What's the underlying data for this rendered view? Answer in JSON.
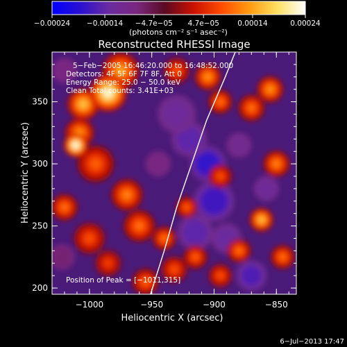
{
  "chart_data": {
    "type": "heatmap",
    "title": "Reconstructed RHESSI Image",
    "xlabel": "Heliocentric X (arcsec)",
    "ylabel": "Heliocentric Y (arcsec)",
    "xlim": [
      -1030,
      -834
    ],
    "ylim": [
      195,
      390
    ],
    "x_ticks": [
      -1000,
      -950,
      -900,
      -850
    ],
    "x_tick_labels": [
      "−1000",
      "−950",
      "−900",
      "−850"
    ],
    "y_ticks": [
      200,
      250,
      300,
      350
    ],
    "y_tick_labels": [
      "200",
      "250",
      "300",
      "350"
    ],
    "colorbar": {
      "range": [
        -0.00024,
        0.00024
      ],
      "ticks": [
        -0.00024,
        -0.00014,
        -4.7e-05,
        4.7e-05,
        0.00014,
        0.00024
      ],
      "tick_labels": [
        "−0.00024",
        "−0.00014",
        "−4.7e−05",
        "4.7e−05",
        "0.00014",
        "0.00024"
      ],
      "unit_label": "(photons cm⁻² s⁻¹ asec⁻²)",
      "colormap": [
        "#0000ff",
        "#2a10d0",
        "#6a2aa0",
        "#7a2880",
        "#5a0a22",
        "#c81000",
        "#ff4a00",
        "#ff9a10",
        "#ffe060",
        "#ffffff"
      ]
    },
    "info_lines": [
      "5−Feb−2005 16:46:20.000 to 16:48:52.000",
      "Detectors: 4F 5F 6F 7F 8F, Att 0",
      "Energy Range: 25.0 − 50.0 keV",
      "Clean    Total counts: 3.41E+03"
    ],
    "peak_label": "Position of Peak = [−1011,315]",
    "peak_position": [
      -1011,
      315
    ],
    "limb_curve": [
      [
        -951,
        195
      ],
      [
        -940,
        230
      ],
      [
        -930,
        265
      ],
      [
        -918,
        300
      ],
      [
        -906,
        335
      ],
      [
        -891,
        370
      ],
      [
        -883,
        390
      ]
    ],
    "sources": [
      {
        "x": -1011,
        "y": 315,
        "level": 1.0,
        "r": 9
      },
      {
        "x": -985,
        "y": 357,
        "level": 0.95,
        "r": 14
      },
      {
        "x": -1005,
        "y": 348,
        "level": 0.7,
        "r": 12
      },
      {
        "x": -975,
        "y": 375,
        "level": 0.6,
        "r": 14
      },
      {
        "x": -1008,
        "y": 325,
        "level": 0.55,
        "r": 11
      },
      {
        "x": -995,
        "y": 300,
        "level": 0.4,
        "r": 14
      },
      {
        "x": -970,
        "y": 275,
        "level": 0.5,
        "r": 12
      },
      {
        "x": -1020,
        "y": 265,
        "level": 0.45,
        "r": 10
      },
      {
        "x": -960,
        "y": 250,
        "level": 0.45,
        "r": 12
      },
      {
        "x": -1000,
        "y": 240,
        "level": 0.35,
        "r": 12
      },
      {
        "x": -940,
        "y": 240,
        "level": 0.45,
        "r": 9
      },
      {
        "x": -955,
        "y": 205,
        "level": 0.4,
        "r": 10
      },
      {
        "x": -985,
        "y": 220,
        "level": 0.3,
        "r": 10
      },
      {
        "x": -932,
        "y": 215,
        "level": 0.35,
        "r": 10
      },
      {
        "x": -915,
        "y": 225,
        "level": 0.4,
        "r": 9
      },
      {
        "x": -895,
        "y": 290,
        "level": 0.35,
        "r": 9
      },
      {
        "x": -905,
        "y": 370,
        "level": 0.55,
        "r": 10
      },
      {
        "x": -895,
        "y": 350,
        "level": 0.45,
        "r": 9
      },
      {
        "x": -870,
        "y": 345,
        "level": 0.45,
        "r": 10
      },
      {
        "x": -855,
        "y": 360,
        "level": 0.55,
        "r": 10
      },
      {
        "x": -850,
        "y": 300,
        "level": 0.5,
        "r": 10
      },
      {
        "x": -862,
        "y": 255,
        "level": 0.7,
        "r": 9
      },
      {
        "x": -880,
        "y": 230,
        "level": 0.45,
        "r": 9
      },
      {
        "x": -845,
        "y": 225,
        "level": 0.45,
        "r": 9
      },
      {
        "x": -895,
        "y": 210,
        "level": 0.35,
        "r": 9
      },
      {
        "x": -930,
        "y": 375,
        "level": 0.35,
        "r": 10
      },
      {
        "x": -922,
        "y": 265,
        "level": 0.4,
        "r": 8
      },
      {
        "x": -930,
        "y": 340,
        "level": -0.5,
        "r": 15
      },
      {
        "x": -920,
        "y": 320,
        "level": -0.6,
        "r": 14
      },
      {
        "x": -905,
        "y": 300,
        "level": -0.75,
        "r": 14
      },
      {
        "x": -900,
        "y": 270,
        "level": -0.7,
        "r": 16
      },
      {
        "x": -915,
        "y": 245,
        "level": -0.6,
        "r": 14
      },
      {
        "x": -890,
        "y": 240,
        "level": -0.55,
        "r": 12
      },
      {
        "x": -870,
        "y": 210,
        "level": -0.65,
        "r": 12
      },
      {
        "x": -858,
        "y": 280,
        "level": -0.5,
        "r": 10
      },
      {
        "x": -880,
        "y": 315,
        "level": -0.45,
        "r": 10
      },
      {
        "x": -945,
        "y": 300,
        "level": -0.35,
        "r": 10
      },
      {
        "x": -1020,
        "y": 375,
        "level": -0.35,
        "r": 10
      },
      {
        "x": -1022,
        "y": 225,
        "level": -0.3,
        "r": 10
      }
    ]
  },
  "footer_date": "6−Jul−2013 17:47"
}
